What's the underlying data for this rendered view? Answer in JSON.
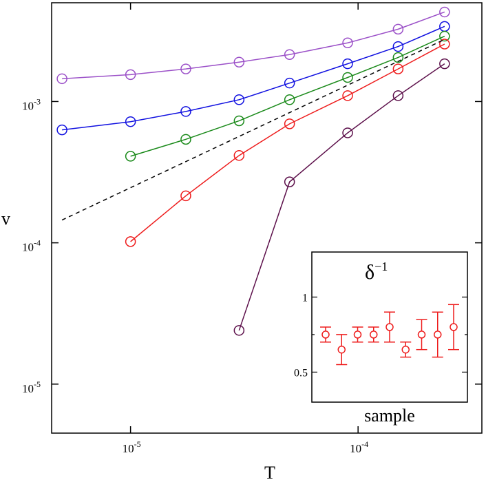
{
  "chart_data": [
    {
      "type": "line",
      "scale": "log-log",
      "xlabel": "T",
      "ylabel": "v",
      "xlim": [
        4.5e-06,
        0.00035
      ],
      "ylim": [
        4.5e-06,
        0.005
      ],
      "x_ticks": [
        {
          "value": 1e-05,
          "base": "10",
          "exp": "-5"
        },
        {
          "value": 0.0001,
          "base": "10",
          "exp": "-4"
        }
      ],
      "y_ticks": [
        {
          "value": 1e-05,
          "base": "10",
          "exp": "-5"
        },
        {
          "value": 0.0001,
          "base": "10",
          "exp": "-4"
        },
        {
          "value": 0.001,
          "base": "10",
          "exp": "-3"
        }
      ],
      "series": [
        {
          "name": "purple",
          "color": "#9b50c8",
          "marker": "circle",
          "x": [
            5e-06,
            1e-05,
            1.75e-05,
            3e-05,
            5e-05,
            9e-05,
            0.00015,
            0.00024
          ],
          "y": [
            0.00145,
            0.00155,
            0.0017,
            0.0019,
            0.00215,
            0.0026,
            0.00325,
            0.0043
          ]
        },
        {
          "name": "blue",
          "color": "#1010e0",
          "marker": "circle",
          "x": [
            5e-06,
            1e-05,
            1.75e-05,
            3e-05,
            5e-05,
            9e-05,
            0.00015,
            0.00024
          ],
          "y": [
            0.00063,
            0.00072,
            0.00085,
            0.00103,
            0.00135,
            0.00185,
            0.00245,
            0.0034
          ]
        },
        {
          "name": "green",
          "color": "#1a8a1a",
          "marker": "circle",
          "x": [
            1e-05,
            1.75e-05,
            3e-05,
            5e-05,
            9e-05,
            0.00015,
            0.00024
          ],
          "y": [
            0.00041,
            0.00054,
            0.00073,
            0.00103,
            0.00148,
            0.00205,
            0.0029
          ]
        },
        {
          "name": "red",
          "color": "#ee1c1c",
          "marker": "circle",
          "x": [
            1e-05,
            1.75e-05,
            3e-05,
            5e-05,
            9e-05,
            0.00015,
            0.00024
          ],
          "y": [
            0.000102,
            0.000215,
            0.000415,
            0.000695,
            0.0011,
            0.0017,
            0.00255
          ]
        },
        {
          "name": "maroon",
          "color": "#5c0f4a",
          "marker": "circle",
          "x": [
            3e-05,
            5e-05,
            9e-05,
            0.00015,
            0.00024
          ],
          "y": [
            2.4e-05,
            0.00027,
            0.0006,
            0.0011,
            0.00185
          ]
        },
        {
          "name": "fit",
          "color": "#000000",
          "marker": "none",
          "dash": "dashed",
          "x": [
            5e-06,
            0.00024
          ],
          "y": [
            0.000145,
            0.00275
          ]
        }
      ]
    },
    {
      "type": "scatter",
      "role": "inset",
      "title_base": "δ",
      "title_exp": "−1",
      "xlabel": "sample",
      "ylim": [
        0.3,
        1.3
      ],
      "y_ticks": [
        {
          "value": 1,
          "label": "1"
        },
        {
          "value": 0.5,
          "label": "0.5"
        }
      ],
      "color": "#ee1c1c",
      "samples": [
        1,
        2,
        3,
        4,
        5,
        6,
        7,
        8,
        9
      ],
      "values": [
        0.75,
        0.65,
        0.75,
        0.75,
        0.8,
        0.65,
        0.75,
        0.75,
        0.8
      ],
      "errors": [
        0.05,
        0.1,
        0.05,
        0.05,
        0.1,
        0.05,
        0.1,
        0.15,
        0.15
      ]
    }
  ]
}
